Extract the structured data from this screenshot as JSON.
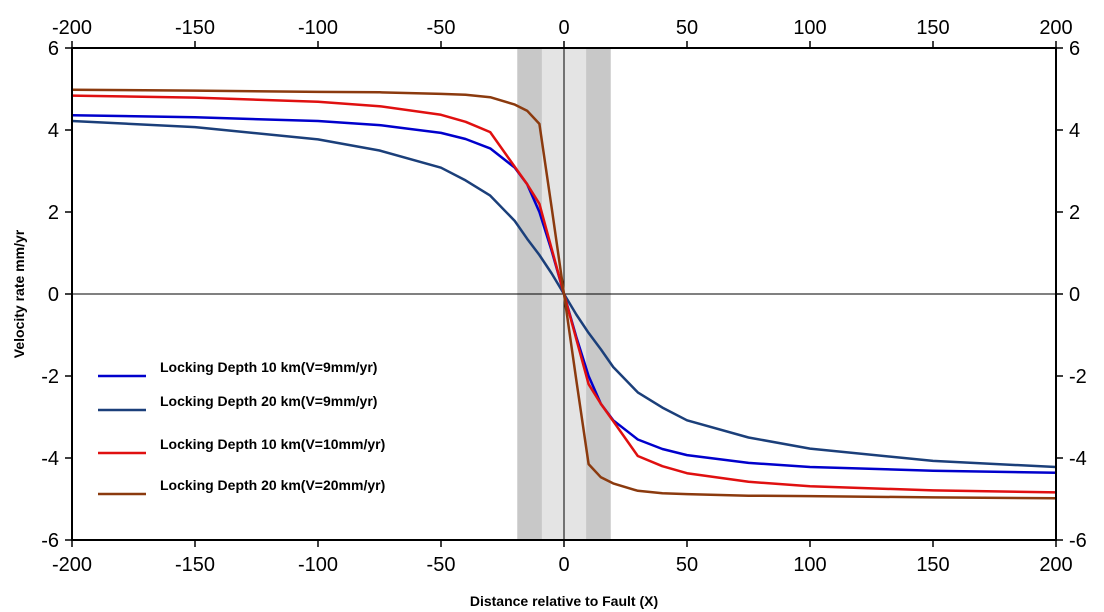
{
  "chart_data": {
    "type": "line",
    "title": "",
    "xlabel": "Distance relative to Fault (X)",
    "ylabel": "Velocity rate mm/yr",
    "xlim": [
      -200,
      200
    ],
    "ylim": [
      -6,
      6
    ],
    "xticks": [
      -200,
      -150,
      -100,
      -50,
      0,
      50,
      100,
      150,
      200
    ],
    "yticks": [
      -6,
      -4,
      -2,
      0,
      2,
      4,
      6
    ],
    "grid": false,
    "axes_on_all_sides": true,
    "zero_lines": true,
    "legend_position": "bottom-left",
    "shaded_bands": [
      {
        "x_range": [
          -19,
          19
        ],
        "color": "#c8c8c8"
      },
      {
        "x_range": [
          -9,
          9
        ],
        "color": "#e4e4e4"
      }
    ],
    "series": [
      {
        "name": "Locking Depth 10 km(V=9mm/yr)",
        "color": "#0000cc",
        "x": [
          -200,
          -150,
          -100,
          -75,
          -50,
          -40,
          -30,
          -20,
          -15,
          -10,
          -5,
          0,
          5,
          10,
          15,
          20,
          30,
          40,
          50,
          75,
          100,
          150,
          200
        ],
        "y": [
          4.36,
          4.31,
          4.22,
          4.12,
          3.93,
          3.78,
          3.55,
          3.08,
          2.68,
          2.0,
          1.05,
          0,
          -1.05,
          -2.0,
          -2.68,
          -3.08,
          -3.55,
          -3.78,
          -3.93,
          -4.12,
          -4.22,
          -4.31,
          -4.36
        ]
      },
      {
        "name": "Locking Depth 20 km(V=9mm/yr)",
        "color": "#1b3f7a",
        "x": [
          -200,
          -150,
          -100,
          -75,
          -50,
          -40,
          -30,
          -20,
          -15,
          -10,
          -5,
          0,
          5,
          10,
          15,
          20,
          30,
          40,
          50,
          75,
          100,
          150,
          200
        ],
        "y": [
          4.22,
          4.07,
          3.77,
          3.5,
          3.08,
          2.77,
          2.4,
          1.78,
          1.35,
          0.95,
          0.5,
          0,
          -0.5,
          -0.95,
          -1.35,
          -1.78,
          -2.4,
          -2.77,
          -3.08,
          -3.5,
          -3.77,
          -4.07,
          -4.22
        ]
      },
      {
        "name": "Locking Depth 10 km(V=10mm/yr)",
        "color": "#e01010",
        "x": [
          -200,
          -150,
          -100,
          -75,
          -50,
          -40,
          -30,
          -20,
          -15,
          -10,
          -5,
          0,
          5,
          10,
          15,
          20,
          30,
          40,
          50,
          75,
          100,
          150,
          200
        ],
        "y": [
          4.84,
          4.79,
          4.69,
          4.58,
          4.37,
          4.2,
          3.95,
          3.1,
          2.68,
          2.2,
          1.1,
          0,
          -1.1,
          -2.2,
          -2.68,
          -3.1,
          -3.95,
          -4.2,
          -4.37,
          -4.58,
          -4.69,
          -4.79,
          -4.84
        ]
      },
      {
        "name": "Locking Depth 20 km(V=20mm/yr)",
        "color": "#8b3a0e",
        "x": [
          -200,
          -150,
          -100,
          -75,
          -50,
          -40,
          -30,
          -20,
          -15,
          -10,
          -5,
          0,
          5,
          10,
          15,
          20,
          30,
          40,
          50,
          75,
          100,
          150,
          200
        ],
        "y": [
          4.98,
          4.96,
          4.93,
          4.92,
          4.88,
          4.86,
          4.8,
          4.62,
          4.47,
          4.15,
          2.1,
          0,
          -2.1,
          -4.15,
          -4.47,
          -4.62,
          -4.8,
          -4.86,
          -4.88,
          -4.92,
          -4.93,
          -4.96,
          -4.98
        ]
      }
    ]
  }
}
